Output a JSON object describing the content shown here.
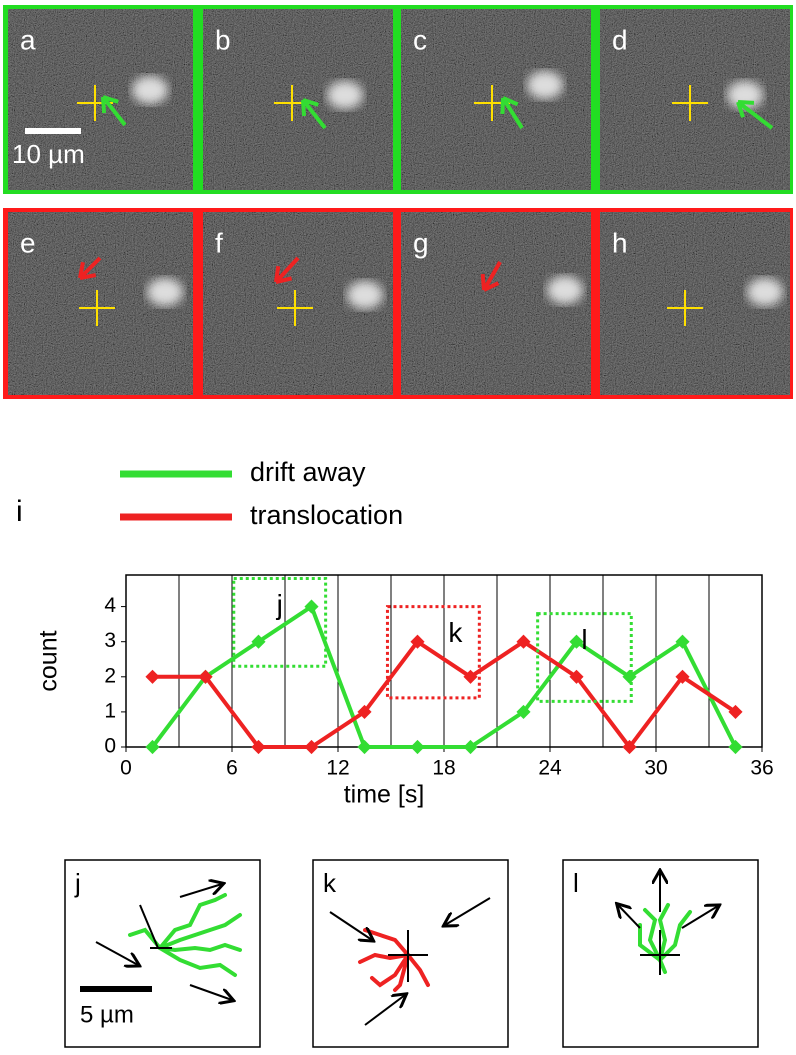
{
  "panels": {
    "rows": [
      {
        "color": "#22dd22",
        "labels": [
          "a",
          "b",
          "c",
          "d"
        ]
      },
      {
        "color": "#ff1a1a",
        "labels": [
          "e",
          "f",
          "g",
          "h"
        ]
      }
    ],
    "scale_bar": "10 µm"
  },
  "chart_label": "i",
  "chart_data": {
    "type": "line",
    "xlabel": "time [s]",
    "ylabel": "count",
    "x": [
      1.5,
      4.5,
      7.5,
      10.5,
      13.5,
      16.5,
      19.5,
      22.5,
      25.5,
      28.5,
      31.5,
      34.5
    ],
    "series": [
      {
        "name": "drift away",
        "color": "#33dd33",
        "values": [
          0,
          2,
          3,
          4,
          0,
          0,
          0,
          1,
          3,
          2,
          3,
          0
        ]
      },
      {
        "name": "translocation",
        "color": "#ee2222",
        "values": [
          2,
          2,
          0,
          0,
          1,
          3,
          2,
          3,
          2,
          0,
          2,
          1
        ]
      }
    ],
    "xlim": [
      0,
      36
    ],
    "xticks": [
      0,
      6,
      12,
      18,
      24,
      30,
      36
    ],
    "ylim": [
      0,
      4.9
    ],
    "yticks": [
      0,
      1,
      2,
      3,
      4
    ],
    "xgrid": [
      3,
      6,
      9,
      12,
      15,
      18,
      21,
      24,
      27,
      30,
      33
    ],
    "annotations": [
      {
        "label": "j",
        "color": "#33dd33",
        "x": [
          6.1,
          11.3
        ],
        "y": [
          2.3,
          4.8
        ]
      },
      {
        "label": "k",
        "color": "#ee2222",
        "x": [
          14.8,
          20.0
        ],
        "y": [
          1.4,
          4.0
        ]
      },
      {
        "label": "l",
        "color": "#33dd33",
        "x": [
          23.3,
          28.6
        ],
        "y": [
          1.3,
          3.8
        ]
      }
    ]
  },
  "trajectories": {
    "labels": [
      "j",
      "k",
      "l"
    ],
    "scale_bar": "5 µm"
  }
}
